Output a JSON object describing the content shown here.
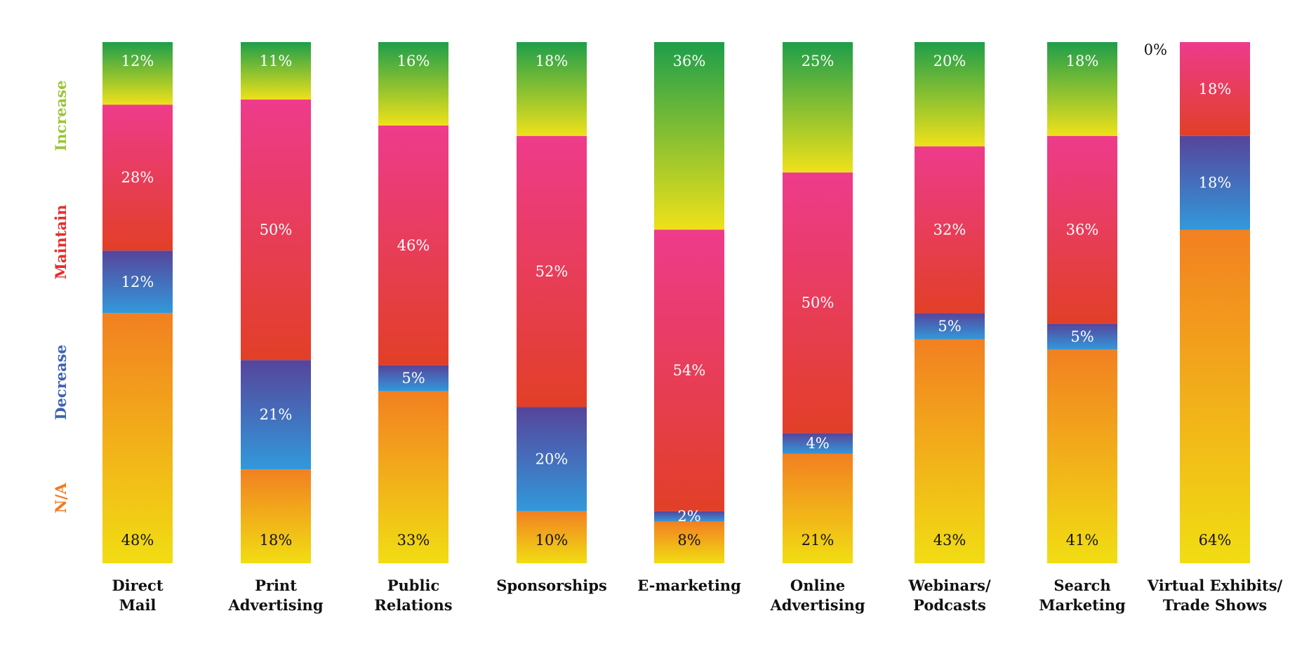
{
  "chart_data": {
    "type": "bar",
    "stacked": true,
    "orientation": "vertical",
    "categories": [
      [
        "Direct",
        "Mail"
      ],
      [
        "Print",
        "Advertising"
      ],
      [
        "Public",
        "Relations"
      ],
      [
        "Sponsorships"
      ],
      [
        "E-marketing"
      ],
      [
        "Online",
        "Advertising"
      ],
      [
        "Webinars/",
        "Podcasts"
      ],
      [
        "Search",
        "Marketing"
      ],
      [
        "Virtual Exhibits/",
        "Trade Shows"
      ]
    ],
    "series": [
      {
        "name": "N/A",
        "values": [
          48,
          18,
          33,
          10,
          8,
          21,
          43,
          41,
          64
        ],
        "labels": [
          "48%",
          "18%",
          "33%",
          "10%",
          "8%",
          "21%",
          "43%",
          "41%",
          "64%"
        ]
      },
      {
        "name": "Decrease",
        "values": [
          12,
          21,
          5,
          20,
          2,
          4,
          5,
          5,
          18
        ],
        "labels": [
          "12%",
          "21%",
          "5%",
          "20%",
          "2%",
          "4%",
          "5%",
          "5%",
          "18%"
        ]
      },
      {
        "name": "Maintain",
        "values": [
          28,
          50,
          46,
          52,
          54,
          50,
          32,
          36,
          18
        ],
        "labels": [
          "28%",
          "50%",
          "46%",
          "52%",
          "54%",
          "50%",
          "32%",
          "36%",
          "18%"
        ]
      },
      {
        "name": "Increase",
        "values": [
          12,
          11,
          16,
          18,
          36,
          25,
          20,
          18,
          0
        ],
        "labels": [
          "12%",
          "11%",
          "16%",
          "18%",
          "36%",
          "25%",
          "20%",
          "18%",
          "0%"
        ]
      }
    ],
    "ylim": [
      0,
      100
    ],
    "legend": {
      "placement": "left",
      "entries": [
        "Increase",
        "Maintain",
        "Decrease",
        "N/A"
      ],
      "colors": [
        "#9cc43b",
        "#e4302f",
        "#3d63b3",
        "#f07a22"
      ]
    },
    "gradients": {
      "N/A": [
        "#f28021",
        "#f1dd13"
      ],
      "Decrease": [
        "#56449b",
        "#3299db"
      ],
      "Maintain": [
        "#ee3b8c",
        "#e23f27"
      ],
      "Increase": [
        "#1e9e4a",
        "#efe11a"
      ]
    },
    "grid": false
  }
}
